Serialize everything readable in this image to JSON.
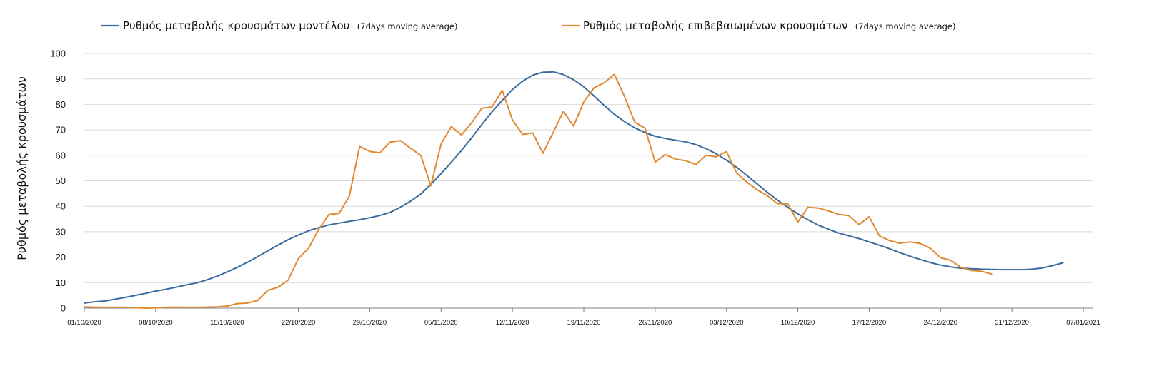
{
  "chart_data": {
    "type": "line",
    "title": "",
    "xlabel": "",
    "ylabel": "Ρυθμός μεταβολής κρουσμάτων",
    "ylim": [
      0,
      100
    ],
    "yticks": [
      0,
      10,
      20,
      30,
      40,
      50,
      60,
      70,
      80,
      90,
      100
    ],
    "grid": true,
    "legend_position": "top",
    "x_start": "2020-10-01",
    "x_tick_labels": [
      "01/10/2020",
      "08/10/2020",
      "15/10/2020",
      "22/10/2020",
      "29/10/2020",
      "05/11/2020",
      "12/11/2020",
      "19/11/2020",
      "26/11/2020",
      "03/12/2020",
      "10/12/2020",
      "17/12/2020",
      "24/12/2020",
      "31/12/2020",
      "07/01/2021"
    ],
    "series": [
      {
        "name": "Ρυθμός μεταβολής κρουσμάτων μοντέλου",
        "note": "(7days moving average)",
        "color": "#3a6b9e",
        "points": [
          [
            0,
            2.0
          ],
          [
            1,
            2.5
          ],
          [
            2,
            2.8
          ],
          [
            3,
            3.5
          ],
          [
            4,
            4.2
          ],
          [
            5,
            5.0
          ],
          [
            6,
            5.8
          ],
          [
            7,
            6.7
          ],
          [
            8,
            7.4
          ],
          [
            9,
            8.2
          ],
          [
            10,
            9.1
          ],
          [
            11,
            9.9
          ],
          [
            12,
            11.1
          ],
          [
            13,
            12.5
          ],
          [
            14,
            14.2
          ],
          [
            15,
            16.0
          ],
          [
            16,
            18.0
          ],
          [
            17,
            20.2
          ],
          [
            18,
            22.5
          ],
          [
            19,
            24.7
          ],
          [
            20,
            26.9
          ],
          [
            21,
            28.7
          ],
          [
            22,
            30.4
          ],
          [
            23,
            31.6
          ],
          [
            24,
            32.7
          ],
          [
            25,
            33.4
          ],
          [
            26,
            34.1
          ],
          [
            27,
            34.7
          ],
          [
            28,
            35.5
          ],
          [
            29,
            36.4
          ],
          [
            30,
            37.6
          ],
          [
            31,
            39.6
          ],
          [
            32,
            42.0
          ],
          [
            33,
            44.8
          ],
          [
            34,
            48.6
          ],
          [
            35,
            52.8
          ],
          [
            36,
            57.3
          ],
          [
            37,
            61.9
          ],
          [
            38,
            66.9
          ],
          [
            39,
            72.1
          ],
          [
            40,
            77.1
          ],
          [
            41,
            81.6
          ],
          [
            42,
            85.8
          ],
          [
            43,
            89.1
          ],
          [
            44,
            91.5
          ],
          [
            45,
            92.6
          ],
          [
            46,
            92.8
          ],
          [
            47,
            91.7
          ],
          [
            48,
            89.7
          ],
          [
            49,
            86.9
          ],
          [
            50,
            83.3
          ],
          [
            51,
            79.6
          ],
          [
            52,
            76.1
          ],
          [
            53,
            73.2
          ],
          [
            54,
            70.8
          ],
          [
            55,
            68.9
          ],
          [
            56,
            67.5
          ],
          [
            57,
            66.6
          ],
          [
            58,
            65.9
          ],
          [
            59,
            65.3
          ],
          [
            60,
            64.2
          ],
          [
            61,
            62.6
          ],
          [
            62,
            60.6
          ],
          [
            63,
            58.1
          ],
          [
            64,
            55.3
          ],
          [
            65,
            52.1
          ],
          [
            66,
            48.8
          ],
          [
            67,
            45.5
          ],
          [
            68,
            42.4
          ],
          [
            69,
            39.6
          ],
          [
            70,
            37.0
          ],
          [
            71,
            34.7
          ],
          [
            72,
            32.6
          ],
          [
            73,
            31.0
          ],
          [
            74,
            29.5
          ],
          [
            75,
            28.4
          ],
          [
            76,
            27.3
          ],
          [
            77,
            26.0
          ],
          [
            78,
            24.7
          ],
          [
            79,
            23.3
          ],
          [
            80,
            21.8
          ],
          [
            81,
            20.4
          ],
          [
            82,
            19.1
          ],
          [
            83,
            17.9
          ],
          [
            84,
            16.9
          ],
          [
            85,
            16.2
          ],
          [
            86,
            15.7
          ],
          [
            87,
            15.5
          ],
          [
            88,
            15.3
          ],
          [
            89,
            15.2
          ],
          [
            90,
            15.1
          ],
          [
            91,
            15.1
          ],
          [
            92,
            15.1
          ],
          [
            93,
            15.3
          ],
          [
            94,
            15.8
          ],
          [
            95,
            16.7
          ],
          [
            96,
            17.8
          ]
        ]
      },
      {
        "name": "Ρυθμός μεταβολής επιβεβαιωμένων κρουσμάτων",
        "note": "(7days moving average)",
        "color": "#e08a30",
        "points": [
          [
            0,
            0.5
          ],
          [
            1,
            0.4
          ],
          [
            2,
            0.3
          ],
          [
            3,
            0.3
          ],
          [
            4,
            0.3
          ],
          [
            5,
            0.2
          ],
          [
            6,
            0.0
          ],
          [
            7,
            0.1
          ],
          [
            8,
            0.3
          ],
          [
            9,
            0.4
          ],
          [
            10,
            0.3
          ],
          [
            11,
            0.3
          ],
          [
            12,
            0.4
          ],
          [
            13,
            0.5
          ],
          [
            14,
            0.8
          ],
          [
            15,
            1.8
          ],
          [
            16,
            2.0
          ],
          [
            17,
            3.0
          ],
          [
            18,
            7.0
          ],
          [
            19,
            8.2
          ],
          [
            20,
            11.0
          ],
          [
            21,
            19.5
          ],
          [
            22,
            23.5
          ],
          [
            23,
            31.0
          ],
          [
            24,
            36.8
          ],
          [
            25,
            37.2
          ],
          [
            26,
            44.0
          ],
          [
            27,
            63.5
          ],
          [
            28,
            61.5
          ],
          [
            29,
            61.0
          ],
          [
            30,
            65.2
          ],
          [
            31,
            65.8
          ],
          [
            32,
            62.8
          ],
          [
            33,
            60.0
          ],
          [
            34,
            48.0
          ],
          [
            35,
            64.5
          ],
          [
            36,
            71.3
          ],
          [
            37,
            68.0
          ],
          [
            38,
            72.8
          ],
          [
            39,
            78.5
          ],
          [
            40,
            79.0
          ],
          [
            41,
            85.5
          ],
          [
            42,
            74.0
          ],
          [
            43,
            68.2
          ],
          [
            44,
            68.8
          ],
          [
            45,
            60.8
          ],
          [
            46,
            69.0
          ],
          [
            47,
            77.3
          ],
          [
            48,
            71.5
          ],
          [
            49,
            81.0
          ],
          [
            50,
            86.5
          ],
          [
            51,
            88.5
          ],
          [
            52,
            91.8
          ],
          [
            53,
            83.0
          ],
          [
            54,
            73.0
          ],
          [
            55,
            70.7
          ],
          [
            56,
            57.3
          ],
          [
            57,
            60.3
          ],
          [
            58,
            58.5
          ],
          [
            59,
            57.9
          ],
          [
            60,
            56.4
          ],
          [
            61,
            60.0
          ],
          [
            62,
            59.4
          ],
          [
            63,
            61.5
          ],
          [
            64,
            53.0
          ],
          [
            65,
            49.5
          ],
          [
            66,
            46.5
          ],
          [
            67,
            44.2
          ],
          [
            68,
            41.0
          ],
          [
            69,
            41.0
          ],
          [
            70,
            33.8
          ],
          [
            71,
            39.6
          ],
          [
            72,
            39.3
          ],
          [
            73,
            38.2
          ],
          [
            74,
            36.8
          ],
          [
            75,
            36.3
          ],
          [
            76,
            32.8
          ],
          [
            77,
            35.9
          ],
          [
            78,
            28.4
          ],
          [
            79,
            26.5
          ],
          [
            80,
            25.5
          ],
          [
            81,
            26.0
          ],
          [
            82,
            25.4
          ],
          [
            83,
            23.5
          ],
          [
            84,
            19.8
          ],
          [
            85,
            18.8
          ],
          [
            86,
            16.0
          ],
          [
            87,
            14.8
          ],
          [
            88,
            14.5
          ],
          [
            89,
            13.4
          ]
        ]
      }
    ]
  }
}
